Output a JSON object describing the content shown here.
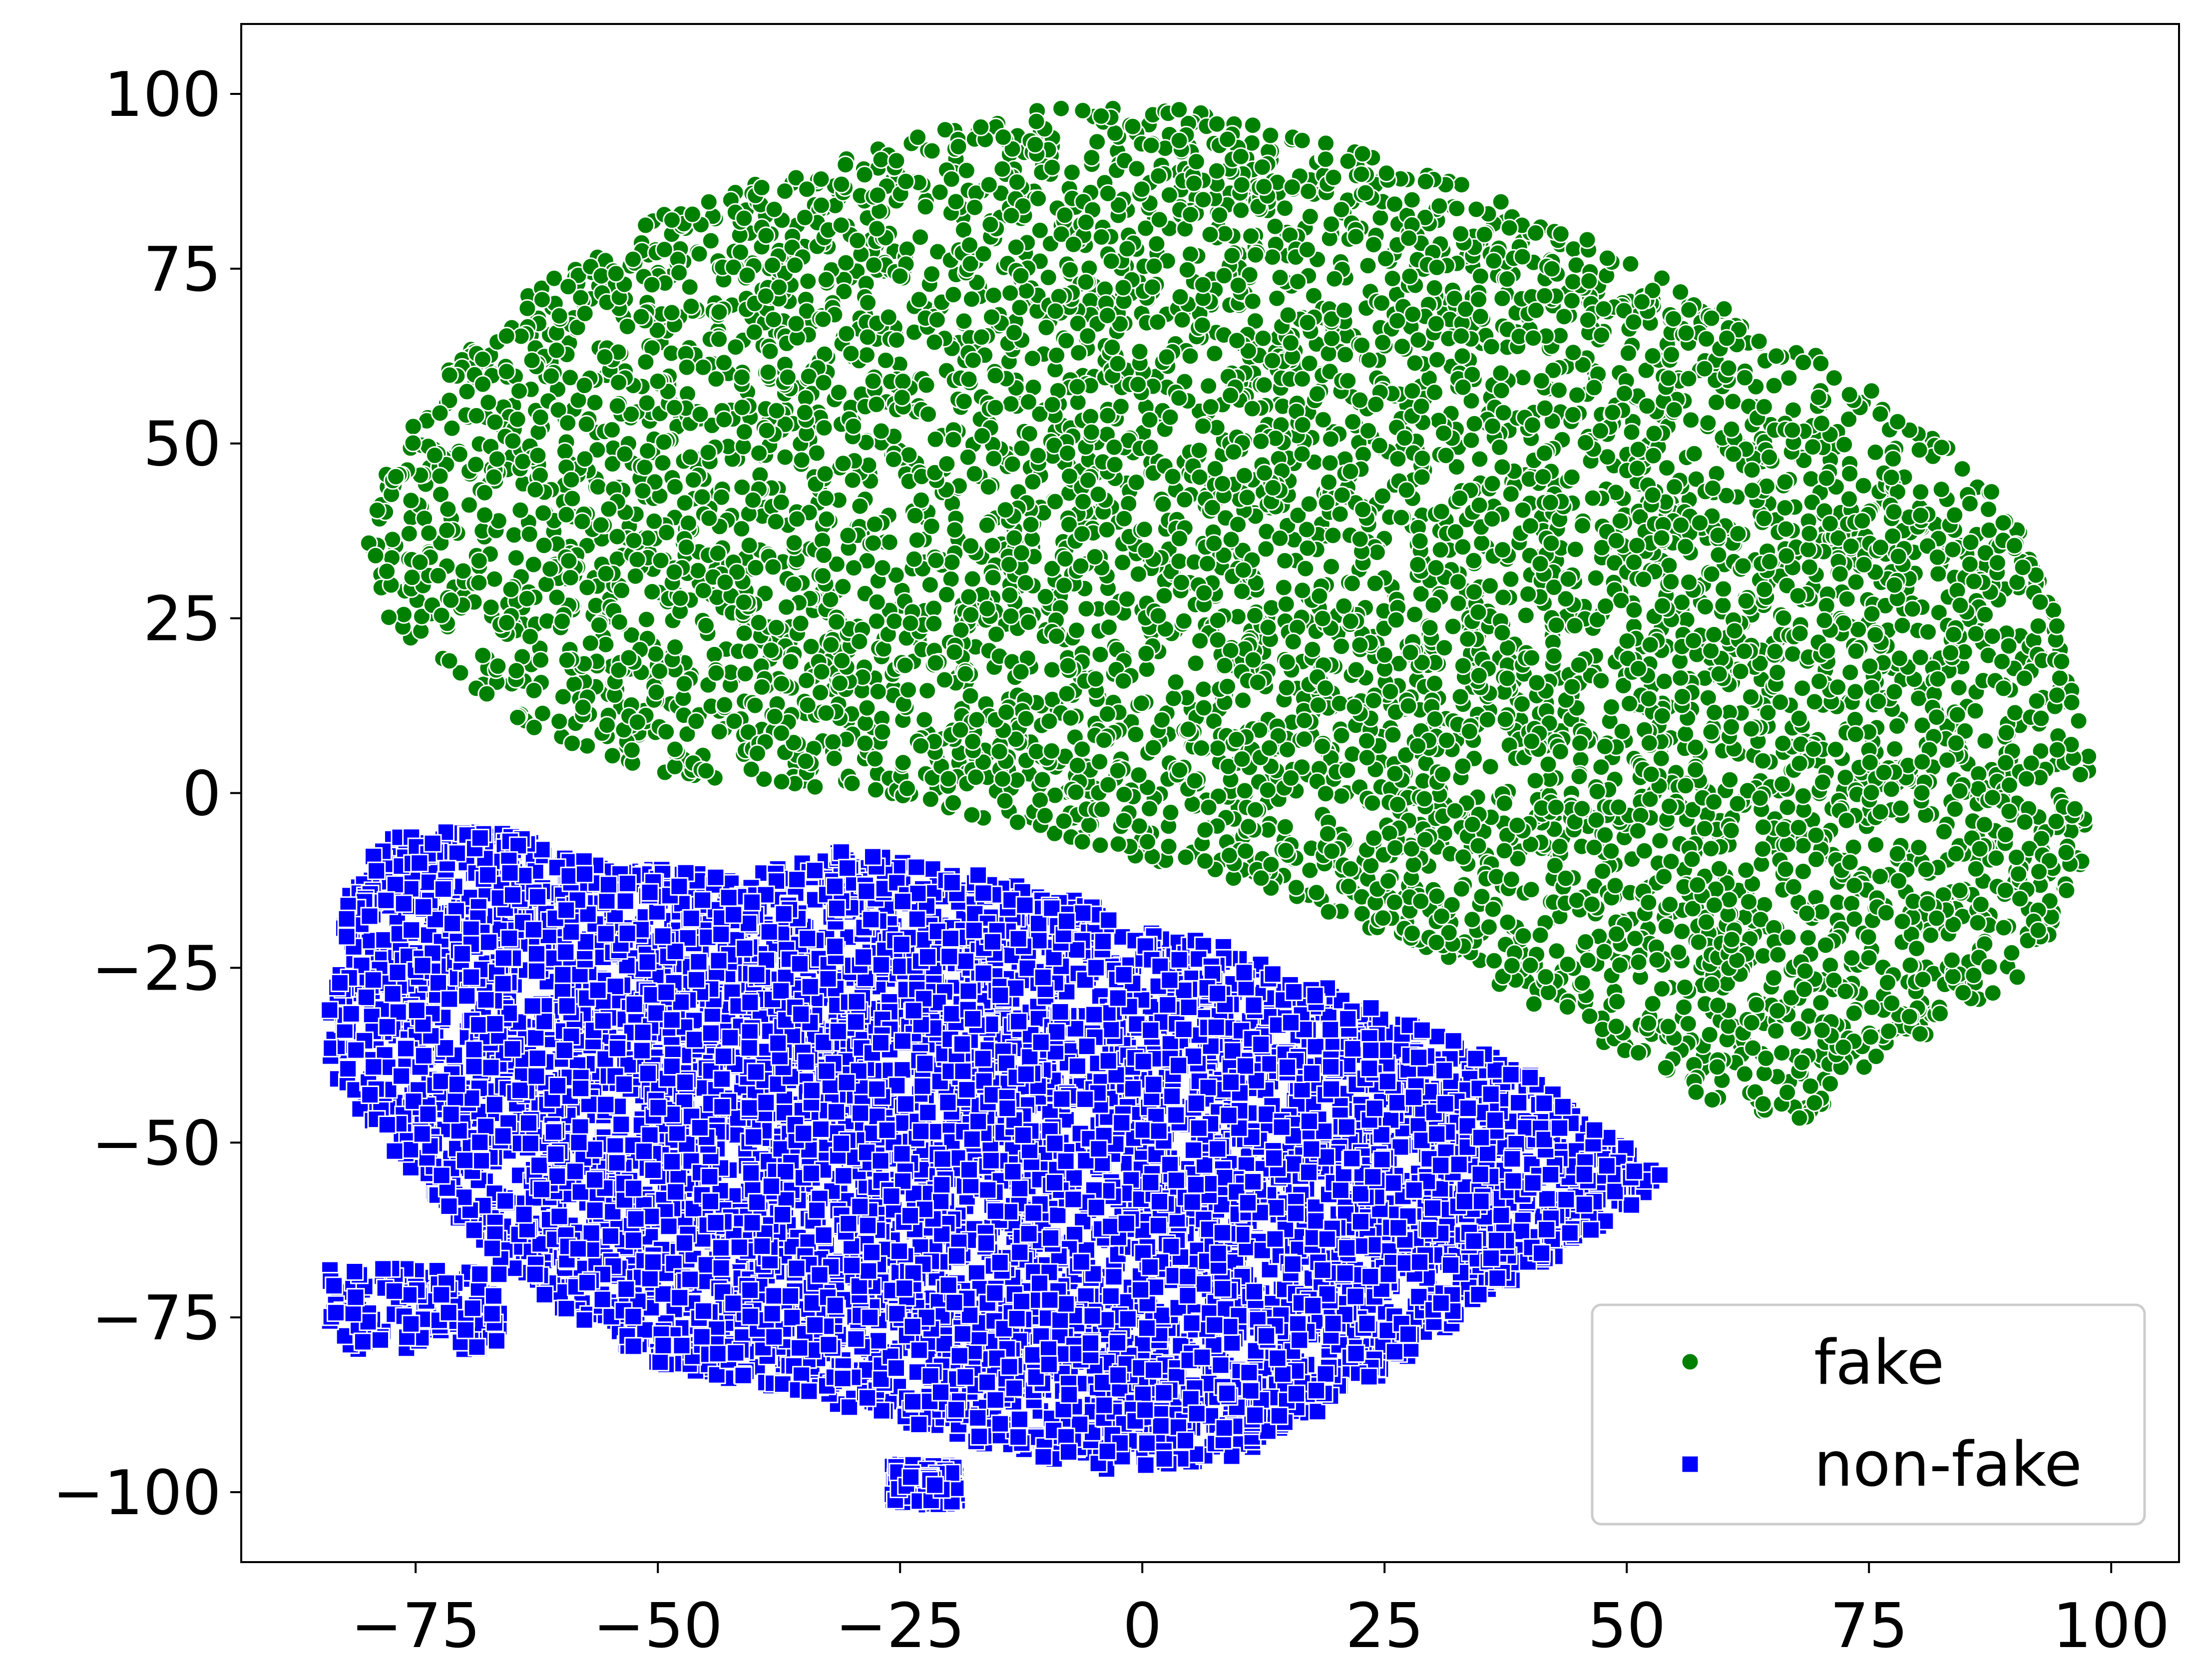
{
  "chart_data": {
    "type": "scatter",
    "title": "",
    "xlabel": "",
    "ylabel": "",
    "xlim": [
      -93,
      107
    ],
    "ylim": [
      -110,
      110
    ],
    "x_ticks": [
      -75,
      -50,
      -25,
      0,
      25,
      50,
      75,
      100
    ],
    "y_ticks": [
      -100,
      -75,
      -50,
      -25,
      0,
      25,
      50,
      75,
      100
    ],
    "x_tick_labels": [
      "−75",
      "−50",
      "−25",
      "0",
      "25",
      "50",
      "75",
      "100"
    ],
    "y_tick_labels": [
      "−100",
      "−75",
      "−50",
      "−25",
      "0",
      "25",
      "50",
      "75",
      "100"
    ],
    "grid": false,
    "legend_position": "lower-right",
    "series": [
      {
        "name": "fake",
        "marker": "circle",
        "color": "#008000",
        "edge_color": "#ffffff",
        "approx_point_count": 6000,
        "cluster_outline": [
          [
            -80,
            36
          ],
          [
            -78,
            46
          ],
          [
            -72,
            60
          ],
          [
            -62,
            73
          ],
          [
            -48,
            84
          ],
          [
            -30,
            91
          ],
          [
            -13,
            98
          ],
          [
            5,
            98
          ],
          [
            20,
            93
          ],
          [
            33,
            87
          ],
          [
            45,
            80
          ],
          [
            58,
            71
          ],
          [
            70,
            63
          ],
          [
            82,
            52
          ],
          [
            90,
            40
          ],
          [
            95,
            25
          ],
          [
            98,
            5
          ],
          [
            97,
            -10
          ],
          [
            92,
            -25
          ],
          [
            84,
            -32
          ],
          [
            75,
            -40
          ],
          [
            68,
            -47
          ],
          [
            60,
            -45
          ],
          [
            50,
            -38
          ],
          [
            40,
            -30
          ],
          [
            28,
            -22
          ],
          [
            15,
            -15
          ],
          [
            2,
            -10
          ],
          [
            -12,
            -5
          ],
          [
            -30,
            0
          ],
          [
            -50,
            3
          ],
          [
            -62,
            8
          ],
          [
            -72,
            18
          ],
          [
            -78,
            25
          ]
        ],
        "extent": {
          "x": [
            -81,
            98
          ],
          "y": [
            -47,
            101
          ]
        }
      },
      {
        "name": "non-fake",
        "marker": "square",
        "color": "#0000ff",
        "edge_color": "#ffffff",
        "approx_point_count": 6000,
        "cluster_outline": [
          [
            -84,
            -30
          ],
          [
            -82,
            -15
          ],
          [
            -78,
            -6
          ],
          [
            -68,
            -5
          ],
          [
            -55,
            -10
          ],
          [
            -42,
            -12
          ],
          [
            -30,
            -8
          ],
          [
            -15,
            -12
          ],
          [
            0,
            -18
          ],
          [
            15,
            -25
          ],
          [
            28,
            -33
          ],
          [
            40,
            -40
          ],
          [
            54,
            -55
          ],
          [
            48,
            -62
          ],
          [
            38,
            -70
          ],
          [
            25,
            -83
          ],
          [
            10,
            -95
          ],
          [
            -5,
            -97
          ],
          [
            -20,
            -92
          ],
          [
            -35,
            -86
          ],
          [
            -50,
            -82
          ],
          [
            -62,
            -72
          ],
          [
            -70,
            -62
          ],
          [
            -78,
            -50
          ],
          [
            -84,
            -40
          ]
        ],
        "sub_clusters": [
          {
            "x_range": [
              -84,
              -66
            ],
            "y_range": [
              -80,
              -68
            ]
          },
          {
            "x_range": [
              -26,
              -19
            ],
            "y_range": [
              -102,
              -96
            ]
          }
        ],
        "extent": {
          "x": [
            -84,
            54
          ],
          "y": [
            -102,
            -5
          ]
        }
      }
    ],
    "legend": {
      "entries": [
        "fake",
        "non-fake"
      ]
    }
  }
}
